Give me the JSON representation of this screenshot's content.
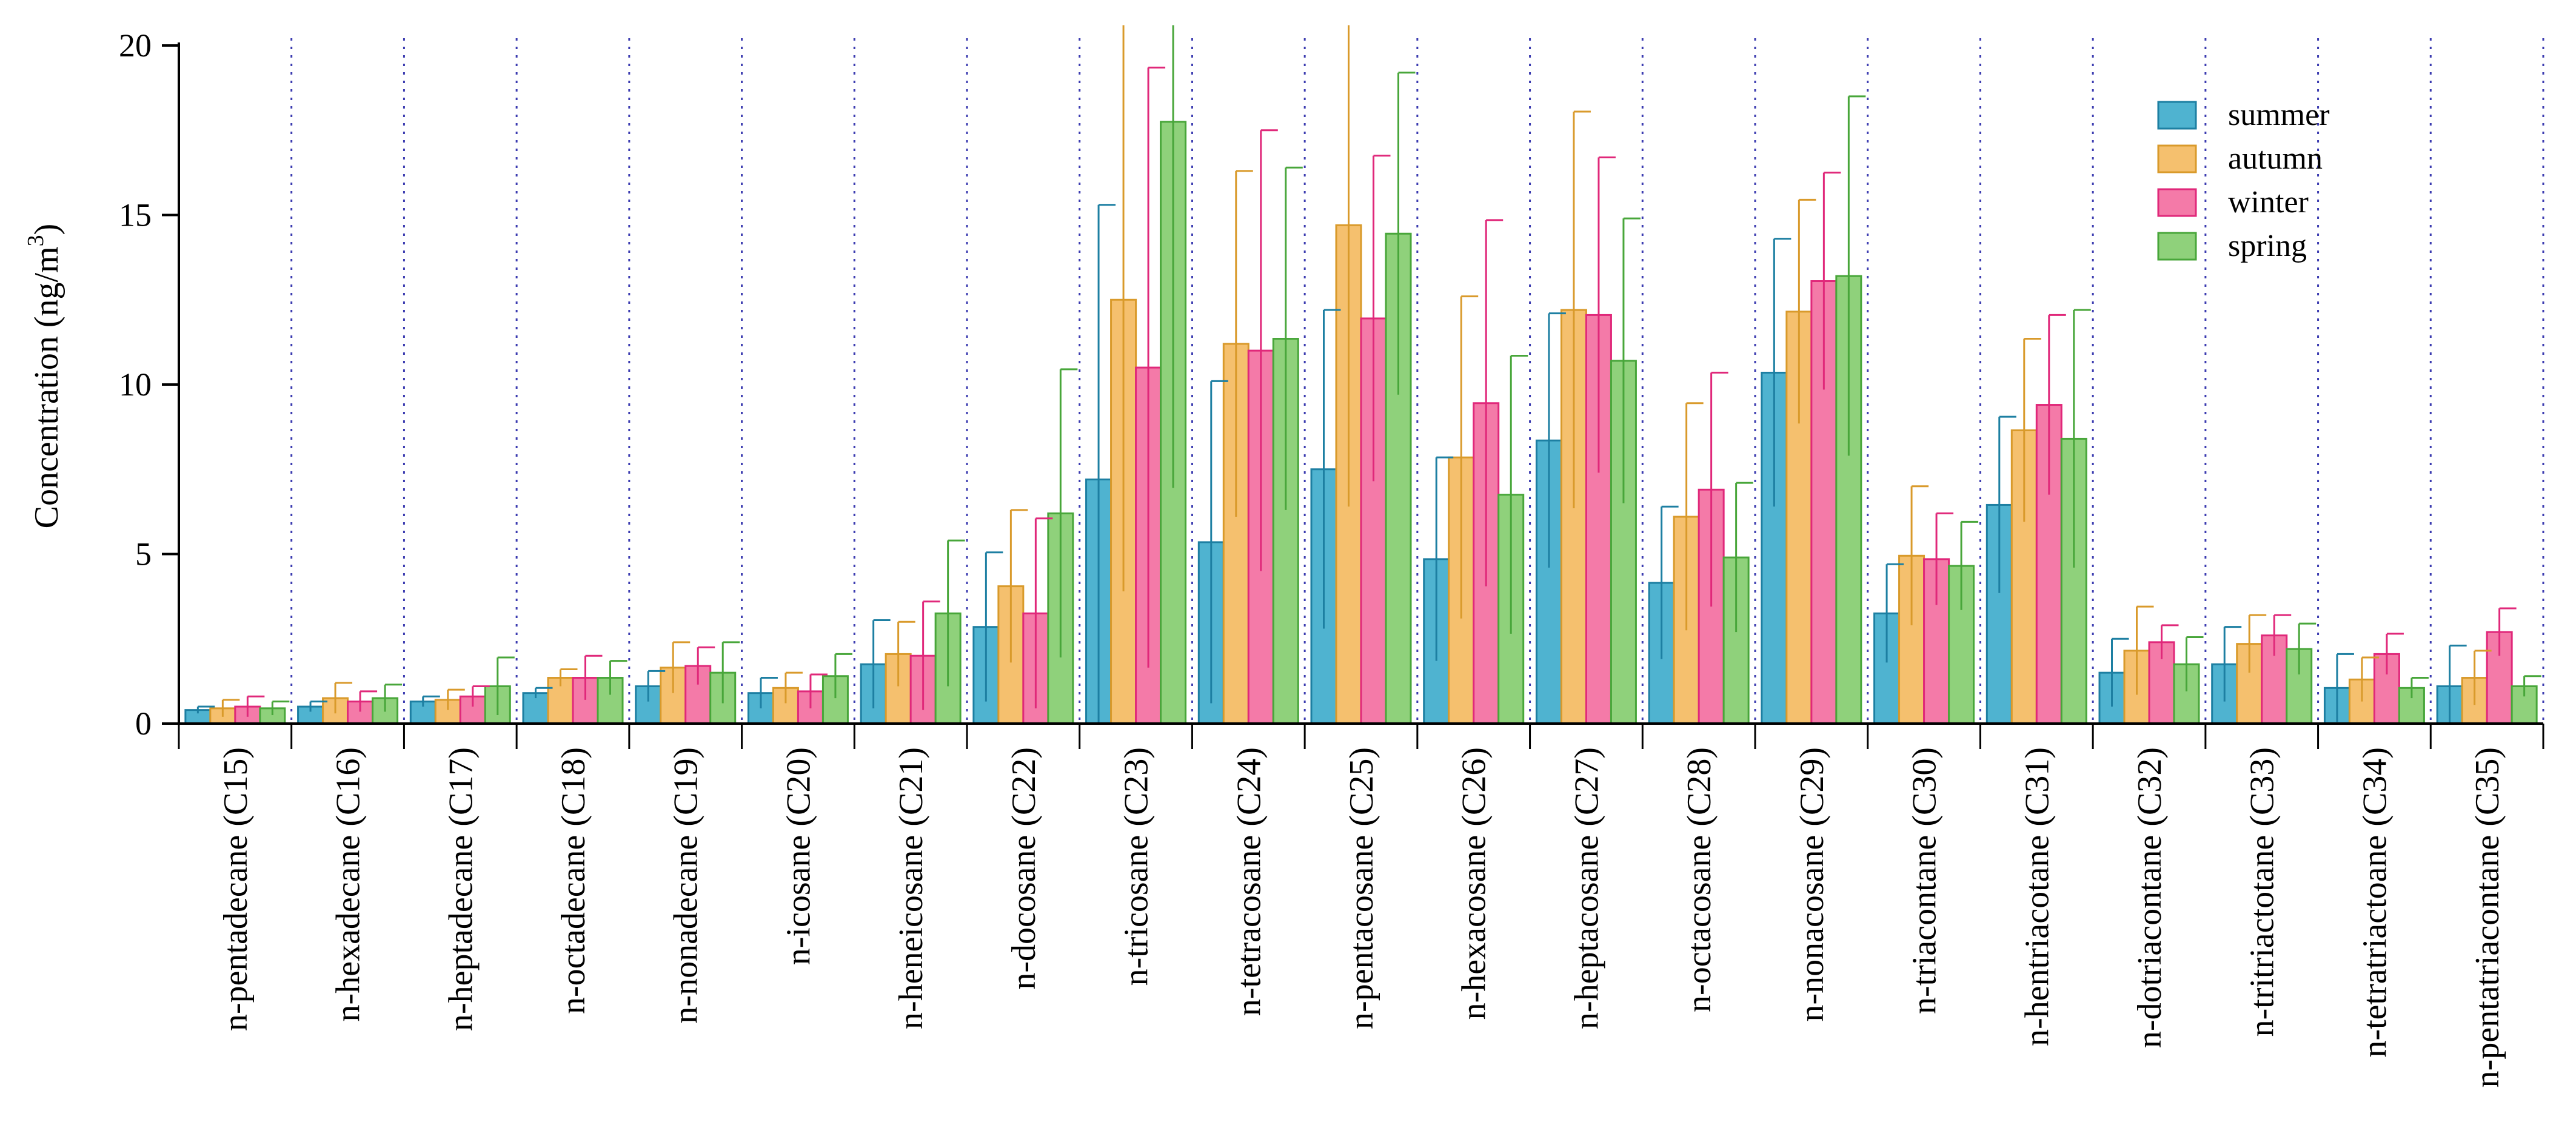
{
  "chart_data": {
    "type": "bar",
    "title": "",
    "xlabel": "",
    "ylabel": {
      "prefix": "Concentration (ng/m",
      "superscript": "3",
      "suffix": ")"
    },
    "ylim": [
      0,
      20
    ],
    "yticks": [
      0,
      5,
      10,
      15,
      20
    ],
    "ytick_labels": [
      "0",
      "5",
      "10",
      "15",
      "20"
    ],
    "grid": "vertical dotted separators between categories",
    "legend_position": "top-right",
    "categories": [
      "n-pentadecane (C15)",
      "n-hexadecane (C16)",
      "n-heptadecane (C17)",
      "n-octadecane (C18)",
      "n-nonadecane (C19)",
      "n-icosane (C20)",
      "n-heneicosane (C21)",
      "n-docosane (C22)",
      "n-tricosane (C23)",
      "n-tetracosane (C24)",
      "n-pentacosane (C25)",
      "n-hexacosane (C26)",
      "n-heptacosane (C27)",
      "n-octacosane (C28)",
      "n-nonacosane (C29)",
      "n-triacontane  (C30)",
      "n-hentriacotane (C31)",
      "n-dotriacontane (C32)",
      "n-tritriactotane (C33)",
      "n-tetratriactoane (C34)",
      "n-pentatriacontane (C35)"
    ],
    "series": [
      {
        "name": "summer",
        "color": "#4fb3d0",
        "edge": "#1d7fa2",
        "values": [
          0.4,
          0.5,
          0.65,
          0.9,
          1.1,
          0.9,
          1.75,
          2.85,
          7.2,
          5.35,
          7.5,
          4.85,
          8.35,
          4.15,
          10.35,
          3.25,
          6.45,
          1.5,
          1.75,
          1.05,
          1.1
        ],
        "errors": [
          0.1,
          0.15,
          0.15,
          0.15,
          0.45,
          0.45,
          1.3,
          2.2,
          8.1,
          4.75,
          4.7,
          3.0,
          3.75,
          2.25,
          3.95,
          1.45,
          2.6,
          1.0,
          1.1,
          1.0,
          1.2
        ]
      },
      {
        "name": "autumn",
        "color": "#f5c06e",
        "edge": "#d99a2b",
        "values": [
          0.45,
          0.75,
          0.7,
          1.35,
          1.65,
          1.05,
          2.05,
          4.05,
          12.5,
          11.2,
          14.7,
          7.85,
          12.2,
          6.1,
          12.15,
          4.95,
          8.65,
          2.15,
          2.35,
          1.3,
          1.35
        ],
        "errors": [
          0.25,
          0.45,
          0.3,
          0.25,
          0.75,
          0.45,
          0.95,
          2.25,
          8.6,
          5.1,
          8.3,
          4.75,
          5.85,
          3.35,
          3.3,
          2.05,
          2.7,
          1.3,
          0.85,
          0.65,
          0.8
        ]
      },
      {
        "name": "winter",
        "color": "#f47aa8",
        "edge": "#e0287a",
        "values": [
          0.5,
          0.65,
          0.8,
          1.35,
          1.7,
          0.95,
          2.0,
          3.25,
          10.5,
          11.0,
          11.95,
          9.45,
          12.05,
          6.9,
          13.05,
          4.85,
          9.4,
          2.4,
          2.6,
          2.05,
          2.7
        ],
        "errors": [
          0.3,
          0.3,
          0.3,
          0.65,
          0.55,
          0.5,
          1.6,
          2.8,
          8.85,
          6.5,
          4.8,
          5.4,
          4.65,
          3.45,
          3.2,
          1.35,
          2.65,
          0.5,
          0.6,
          0.6,
          0.7
        ]
      },
      {
        "name": "spring",
        "color": "#8fd17b",
        "edge": "#48a63a",
        "values": [
          0.45,
          0.75,
          1.1,
          1.35,
          1.5,
          1.4,
          3.25,
          6.2,
          17.75,
          11.35,
          14.45,
          6.75,
          10.7,
          4.9,
          13.2,
          4.65,
          8.4,
          1.75,
          2.2,
          1.05,
          1.1
        ],
        "errors": [
          0.2,
          0.4,
          0.85,
          0.5,
          0.9,
          0.65,
          2.15,
          4.25,
          10.8,
          5.05,
          4.75,
          4.1,
          4.2,
          2.2,
          5.3,
          1.3,
          3.8,
          0.8,
          0.75,
          0.3,
          0.3
        ]
      }
    ]
  }
}
